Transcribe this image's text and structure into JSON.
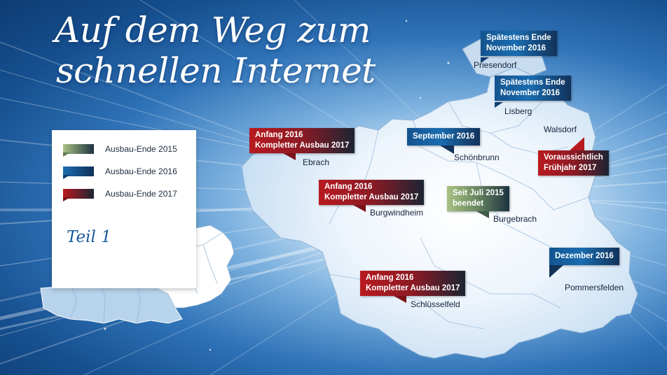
{
  "title": {
    "line1": "Auf dem Weg zum",
    "line2": "schnellen Internet"
  },
  "legend": {
    "items": [
      {
        "label": "Ausbau-Ende 2015",
        "color": "#8fae73"
      },
      {
        "label": "Ausbau-Ende 2016",
        "color": "#1a6cb0"
      },
      {
        "label": "Ausbau-Ende 2017",
        "color": "#b81a1f"
      }
    ],
    "teil": "Teil 1"
  },
  "map_labels": [
    {
      "id": "priesendorf",
      "town": "Priesendorf",
      "line1": "Spätestens Ende",
      "line2": "November 2016",
      "category": "2016"
    },
    {
      "id": "lisberg",
      "town": "Lisberg",
      "line1": "Spätestens Ende",
      "line2": "November 2016",
      "category": "2016"
    },
    {
      "id": "walsdorf",
      "town": "Walsdorf",
      "line1": "Voraussichtlich",
      "line2": "Frühjahr 2017",
      "category": "2017"
    },
    {
      "id": "schoenbrunn",
      "town": "Schönbrunn",
      "line1": "September 2016",
      "line2": "",
      "category": "2016"
    },
    {
      "id": "ebrach",
      "town": "Ebrach",
      "line1": "Anfang 2016",
      "line2": "Kompletter Ausbau 2017",
      "category": "2017"
    },
    {
      "id": "burgwindheim",
      "town": "Burgwindheim",
      "line1": "Anfang 2016",
      "line2": "Kompletter Ausbau 2017",
      "category": "2017"
    },
    {
      "id": "burgebrach",
      "town": "Burgebrach",
      "line1": "Seit Juli 2015",
      "line2": "beendet",
      "category": "2015"
    },
    {
      "id": "pommersfelden",
      "town": "Pommersfelden",
      "line1": "Dezember 2016",
      "line2": "",
      "category": "2016"
    },
    {
      "id": "schluesselfeld",
      "town": "Schlüsselfeld",
      "line1": "Anfang 2016",
      "line2": "Kompletter Ausbau 2017",
      "category": "2017"
    }
  ]
}
